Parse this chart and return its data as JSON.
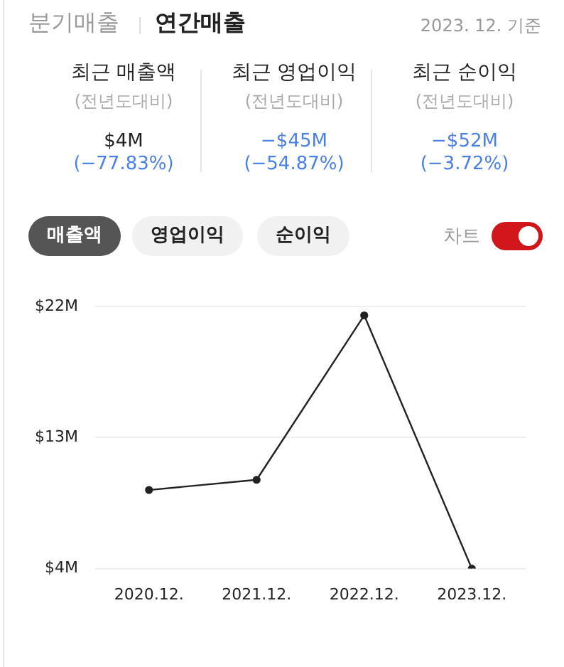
{
  "chart_data": {
    "type": "line",
    "title": "연간매출",
    "subtitle": "2023. 12. 기준",
    "annotations": [
      "분기매출",
      "최근 매출액",
      "(전년도대비)",
      "$4M",
      "(−77.83%)",
      "최근 영업이익",
      "(전년도대비)",
      "−$45M",
      "(−54.87%)",
      "최근 순이익",
      "(전년도대비)",
      "−$52M",
      "(−3.72%)",
      "매출액",
      "영업이익",
      "순이익",
      "차트"
    ],
    "categories": [
      "2020.12.",
      "2021.12.",
      "2022.12.",
      "2023.12."
    ],
    "series": [
      {
        "color": "#222222",
        "values": [
          9.4,
          10.1,
          21.4,
          4
        ]
      }
    ],
    "ylim": [
      4,
      22
    ],
    "yticks": [
      {
        "value": 4,
        "label": "$4M"
      },
      {
        "value": 13,
        "label": "$13M"
      },
      {
        "value": 22,
        "label": "$22M"
      }
    ],
    "grid": "y",
    "marker": "circle",
    "line_style": "solid",
    "legend": false
  }
}
